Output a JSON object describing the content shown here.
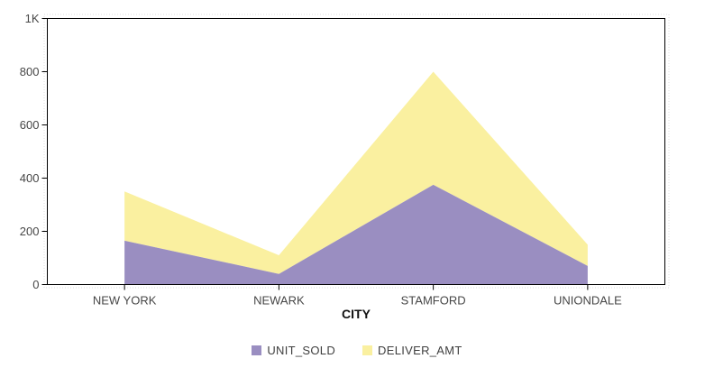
{
  "chart_data": {
    "type": "area",
    "stacked": true,
    "title": "",
    "xlabel": "CITY",
    "ylabel": "",
    "categories": [
      "NEW YORK",
      "NEWARK",
      "STAMFORD",
      "UNIONDALE"
    ],
    "series": [
      {
        "name": "UNIT_SOLD",
        "color": "#9a8ec1",
        "values": [
          165,
          40,
          375,
          70
        ]
      },
      {
        "name": "DELIVER_AMT",
        "color": "#faf0a0",
        "values": [
          185,
          70,
          425,
          80
        ]
      }
    ],
    "stack_totals": [
      350,
      110,
      800,
      150
    ],
    "ylim": [
      0,
      1000
    ],
    "y_ticks": [
      {
        "value": 0,
        "label": "0"
      },
      {
        "value": 200,
        "label": "200"
      },
      {
        "value": 400,
        "label": "400"
      },
      {
        "value": 600,
        "label": "600"
      },
      {
        "value": 800,
        "label": "800"
      },
      {
        "value": 1000,
        "label": "1K"
      }
    ],
    "grid": false,
    "legend_position": "bottom",
    "frame_color": "#000000",
    "outline_color": "#dcdcdc",
    "background": "#ffffff"
  }
}
